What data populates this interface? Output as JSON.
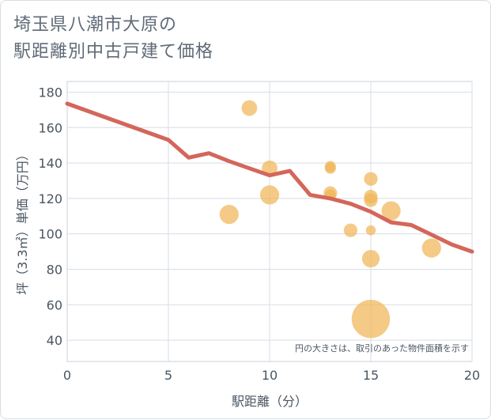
{
  "title_line1": "埼玉県八潮市大原の",
  "title_line2": "駅距離別中古戸建て価格",
  "chart_data": {
    "type": "scatter",
    "title": "埼玉県八潮市大原の駅距離別中古戸建て価格",
    "xlabel": "駅距離（分）",
    "ylabel": "坪（3.3㎡）単価（万円）",
    "xlim": [
      0,
      20
    ],
    "ylim": [
      28,
      186
    ],
    "xticks": [
      0,
      5,
      10,
      15,
      20
    ],
    "yticks": [
      40,
      60,
      80,
      100,
      120,
      140,
      160,
      180
    ],
    "grid": true,
    "note": "円の大きさは、取引のあった物件面積を示す",
    "bubble_color": "#f0b557",
    "line_color": "#d4665a",
    "points": [
      {
        "x": 9,
        "y": 171,
        "s": 2
      },
      {
        "x": 8,
        "y": 111,
        "s": 3
      },
      {
        "x": 10,
        "y": 137,
        "s": 2
      },
      {
        "x": 10,
        "y": 122,
        "s": 3
      },
      {
        "x": 13,
        "y": 138,
        "s": 1
      },
      {
        "x": 13,
        "y": 137,
        "s": 1
      },
      {
        "x": 13,
        "y": 123,
        "s": 1.5
      },
      {
        "x": 13,
        "y": 122,
        "s": 1
      },
      {
        "x": 14,
        "y": 102,
        "s": 1.5
      },
      {
        "x": 15,
        "y": 131,
        "s": 1.5
      },
      {
        "x": 15,
        "y": 121,
        "s": 1.5
      },
      {
        "x": 15,
        "y": 119,
        "s": 1.5
      },
      {
        "x": 15,
        "y": 102,
        "s": 0.8
      },
      {
        "x": 15,
        "y": 86,
        "s": 2.5
      },
      {
        "x": 15,
        "y": 52,
        "s": 12
      },
      {
        "x": 16,
        "y": 113,
        "s": 3
      },
      {
        "x": 18,
        "y": 92,
        "s": 3
      }
    ],
    "trend": {
      "x": [
        0,
        5,
        6,
        7,
        8,
        9,
        10,
        11,
        12,
        13,
        14,
        15,
        16,
        17,
        18,
        19,
        20
      ],
      "y": [
        173.5,
        153,
        143,
        145.5,
        141,
        137,
        133,
        135.5,
        122,
        120,
        117,
        112.5,
        106.5,
        105,
        99.5,
        94,
        90
      ]
    }
  }
}
